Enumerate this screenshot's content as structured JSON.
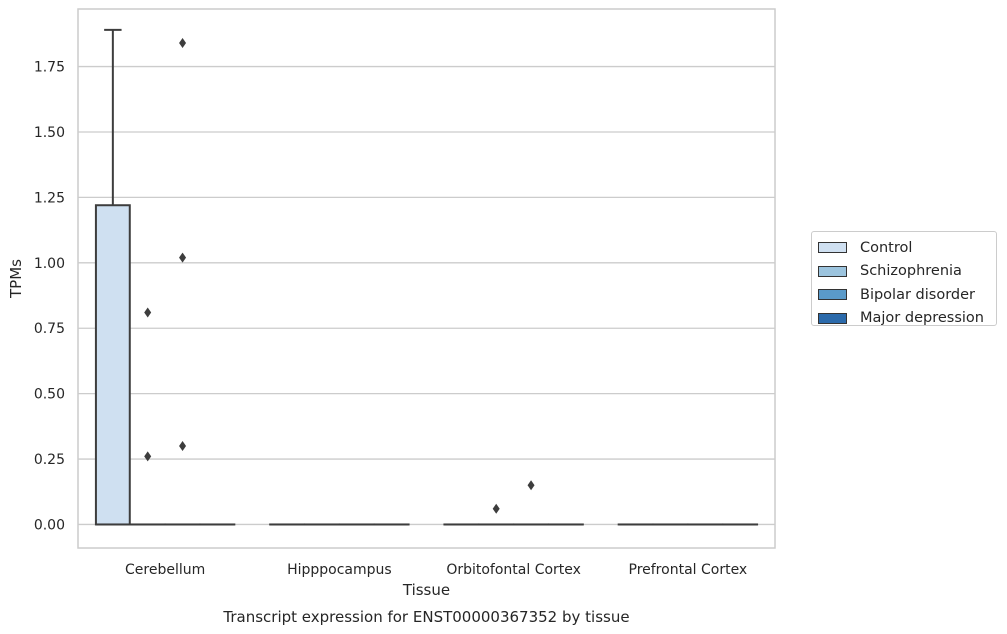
{
  "chart_data": {
    "type": "boxplot",
    "title": "",
    "caption": "Transcript expression for ENST00000367352 by tissue",
    "xlabel": "Tissue",
    "ylabel": "TPMs",
    "ylim": [
      -0.09,
      1.97
    ],
    "yticks": [
      "0.00",
      "0.25",
      "0.50",
      "0.75",
      "1.00",
      "1.25",
      "1.50",
      "1.75"
    ],
    "grid": "horizontal",
    "legend_position": "right",
    "categories": [
      "Cerebellum",
      "Hipppocampus",
      "Orbitofontal Cortex",
      "Prefrontal Cortex"
    ],
    "series": [
      {
        "name": "Control",
        "color": "#cfe0f1",
        "boxes": [
          {
            "q1": 0.0,
            "median": 0.0,
            "q3": 1.22,
            "whisker_low": 0.0,
            "whisker_high": 1.89,
            "outliers": []
          },
          {
            "q1": 0.0,
            "median": 0.0,
            "q3": 0.0,
            "whisker_low": 0.0,
            "whisker_high": 0.0,
            "outliers": []
          },
          {
            "q1": 0.0,
            "median": 0.0,
            "q3": 0.0,
            "whisker_low": 0.0,
            "whisker_high": 0.0,
            "outliers": []
          },
          {
            "q1": 0.0,
            "median": 0.0,
            "q3": 0.0,
            "whisker_low": 0.0,
            "whisker_high": 0.0,
            "outliers": []
          }
        ]
      },
      {
        "name": "Schizophrenia",
        "color": "#9cc4de",
        "boxes": [
          {
            "q1": 0.0,
            "median": 0.0,
            "q3": 0.0,
            "whisker_low": 0.0,
            "whisker_high": 0.0,
            "outliers": [
              0.26,
              0.81
            ]
          },
          {
            "q1": 0.0,
            "median": 0.0,
            "q3": 0.0,
            "whisker_low": 0.0,
            "whisker_high": 0.0,
            "outliers": []
          },
          {
            "q1": 0.0,
            "median": 0.0,
            "q3": 0.0,
            "whisker_low": 0.0,
            "whisker_high": 0.0,
            "outliers": [
              0.06
            ]
          },
          {
            "q1": 0.0,
            "median": 0.0,
            "q3": 0.0,
            "whisker_low": 0.0,
            "whisker_high": 0.0,
            "outliers": []
          }
        ]
      },
      {
        "name": "Bipolar disorder",
        "color": "#5a9ac9",
        "boxes": [
          {
            "q1": 0.0,
            "median": 0.0,
            "q3": 0.0,
            "whisker_low": 0.0,
            "whisker_high": 0.0,
            "outliers": [
              0.3,
              1.02,
              1.84
            ]
          },
          {
            "q1": 0.0,
            "median": 0.0,
            "q3": 0.0,
            "whisker_low": 0.0,
            "whisker_high": 0.0,
            "outliers": []
          },
          {
            "q1": 0.0,
            "median": 0.0,
            "q3": 0.0,
            "whisker_low": 0.0,
            "whisker_high": 0.0,
            "outliers": [
              0.15
            ]
          },
          {
            "q1": 0.0,
            "median": 0.0,
            "q3": 0.0,
            "whisker_low": 0.0,
            "whisker_high": 0.0,
            "outliers": []
          }
        ]
      },
      {
        "name": "Major depression",
        "color": "#2b6aab",
        "boxes": [
          {
            "q1": 0.0,
            "median": 0.0,
            "q3": 0.0,
            "whisker_low": 0.0,
            "whisker_high": 0.0,
            "outliers": []
          },
          {
            "q1": 0.0,
            "median": 0.0,
            "q3": 0.0,
            "whisker_low": 0.0,
            "whisker_high": 0.0,
            "outliers": []
          },
          {
            "q1": 0.0,
            "median": 0.0,
            "q3": 0.0,
            "whisker_low": 0.0,
            "whisker_high": 0.0,
            "outliers": []
          },
          {
            "q1": 0.0,
            "median": 0.0,
            "q3": 0.0,
            "whisker_low": 0.0,
            "whisker_high": 0.0,
            "outliers": []
          }
        ]
      }
    ]
  }
}
